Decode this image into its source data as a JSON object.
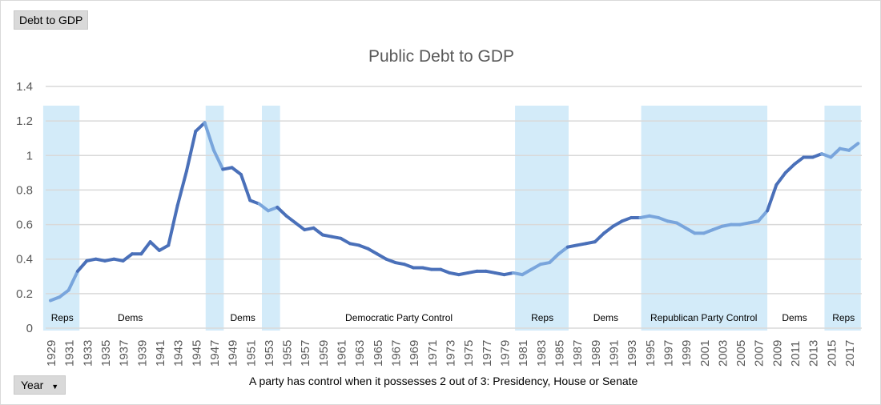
{
  "filter_button": "Debt to GDP",
  "axis_button": "Year",
  "footnote": "A party has control when it possesses 2 out of 3: Presidency, House or Senate",
  "colors": {
    "line_dark": "#4a70b9",
    "line_light": "#79a5dc",
    "band": "#d3ebf9",
    "grid": "#d9d9d9"
  },
  "chart_data": {
    "type": "line",
    "title": "Public Debt to GDP",
    "xlabel": "",
    "ylabel": "",
    "ylim": [
      0,
      1.4
    ],
    "yticks": [
      "0",
      "0.2",
      "0.4",
      "0.6",
      "0.8",
      "1",
      "1.2",
      "1.4"
    ],
    "grid": true,
    "x_start": 1929,
    "values": [
      0.16,
      0.18,
      0.22,
      0.33,
      0.39,
      0.4,
      0.39,
      0.4,
      0.39,
      0.43,
      0.43,
      0.5,
      0.45,
      0.48,
      0.71,
      0.91,
      1.14,
      1.19,
      1.03,
      0.92,
      0.93,
      0.89,
      0.74,
      0.72,
      0.68,
      0.7,
      0.65,
      0.61,
      0.57,
      0.58,
      0.54,
      0.53,
      0.52,
      0.49,
      0.48,
      0.46,
      0.43,
      0.4,
      0.38,
      0.37,
      0.35,
      0.35,
      0.34,
      0.34,
      0.32,
      0.31,
      0.32,
      0.33,
      0.33,
      0.32,
      0.31,
      0.32,
      0.31,
      0.34,
      0.37,
      0.38,
      0.43,
      0.47,
      0.48,
      0.49,
      0.5,
      0.55,
      0.59,
      0.62,
      0.64,
      0.64,
      0.65,
      0.64,
      0.62,
      0.61,
      0.58,
      0.55,
      0.55,
      0.57,
      0.59,
      0.6,
      0.6,
      0.61,
      0.62,
      0.68,
      0.83,
      0.9,
      0.95,
      0.99,
      0.99,
      1.01,
      0.99,
      1.04,
      1.03,
      1.07
    ],
    "bands": [
      [
        1928.2,
        1932.2
      ],
      [
        1946.1,
        1948.1
      ],
      [
        1952.3,
        1954.3
      ],
      [
        1980.2,
        1986.1
      ],
      [
        1994.1,
        2008.0
      ],
      [
        2014.3,
        2018.3
      ]
    ],
    "annotations": [
      {
        "text": "Reps",
        "year": 1930.3
      },
      {
        "text": "Dems",
        "year": 1937.8
      },
      {
        "text": "Dems",
        "year": 1950.2
      },
      {
        "text": "Democratic Party Control",
        "year": 1967.4
      },
      {
        "text": "Reps",
        "year": 1983.2
      },
      {
        "text": "Dems",
        "year": 1990.2
      },
      {
        "text": "Republican Party Control",
        "year": 2001.0
      },
      {
        "text": "Dems",
        "year": 2011.0
      },
      {
        "text": "Reps",
        "year": 2016.4
      }
    ]
  }
}
